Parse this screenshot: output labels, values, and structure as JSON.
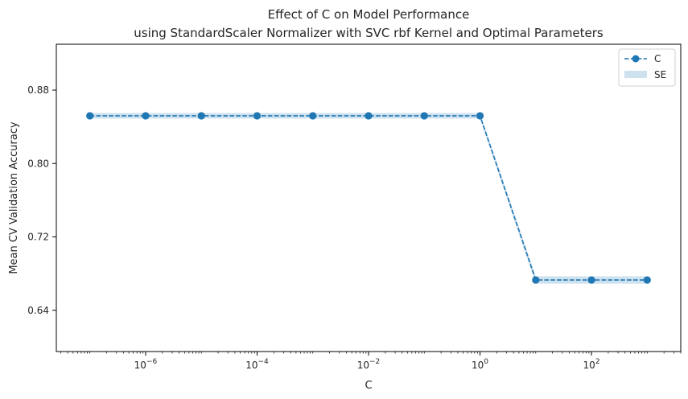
{
  "chart_data": {
    "type": "line",
    "title": "Effect of C on Model Performance",
    "subtitle": "using StandardScaler Normalizer with SVC rbf Kernel and Optimal Parameters",
    "xlabel": "C",
    "ylabel": "Mean CV Validation Accuracy",
    "x_scale": "log",
    "x": [
      1e-07,
      1e-06,
      1e-05,
      0.0001,
      0.001,
      0.01,
      0.1,
      1,
      10,
      100,
      1000
    ],
    "series": [
      {
        "name": "C",
        "values": [
          0.852,
          0.852,
          0.852,
          0.852,
          0.852,
          0.852,
          0.852,
          0.852,
          0.673,
          0.673,
          0.673
        ],
        "se": [
          0.003,
          0.003,
          0.003,
          0.003,
          0.003,
          0.003,
          0.003,
          0.003,
          0.004,
          0.004,
          0.004
        ],
        "color": "#1f77b4",
        "line_style": "dashed",
        "marker": "circle"
      }
    ],
    "band_label": "SE",
    "band_color": "#1f77b4",
    "xlim": [
      2.5e-08,
      4000.0
    ],
    "ylim": [
      0.595,
      0.93
    ],
    "x_ticks": [
      {
        "value": 1e-06,
        "base": "10",
        "exp": "−6"
      },
      {
        "value": 0.0001,
        "base": "10",
        "exp": "−4"
      },
      {
        "value": 0.01,
        "base": "10",
        "exp": "−2"
      },
      {
        "value": 1,
        "base": "10",
        "exp": "0"
      },
      {
        "value": 100,
        "base": "10",
        "exp": "2"
      }
    ],
    "y_ticks": [
      {
        "value": 0.64,
        "label": "0.64"
      },
      {
        "value": 0.72,
        "label": "0.72"
      },
      {
        "value": 0.8,
        "label": "0.80"
      },
      {
        "value": 0.88,
        "label": "0.88"
      }
    ],
    "grid": false,
    "legend_position": "top-right"
  }
}
